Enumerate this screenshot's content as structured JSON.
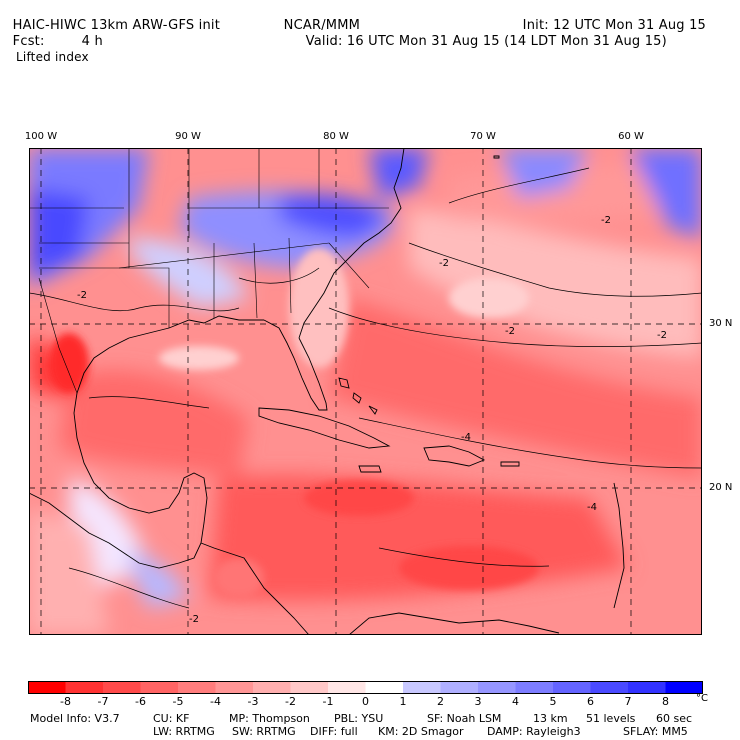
{
  "header": {
    "model_title": "HAIC-HIWC 13km ARW-GFS init",
    "org": "NCAR/MMM",
    "init": "Init: 12 UTC Mon 31 Aug 15",
    "fcst_label": "Fcst:",
    "fcst_value": "4 h",
    "valid": "Valid: 16 UTC Mon 31 Aug 15 (14 LDT Mon 31 Aug 15)",
    "field": "Lifted index"
  },
  "map": {
    "lon_labels": [
      "100 W",
      "90 W",
      "80 W",
      "70 W",
      "60 W"
    ],
    "lat_labels": [
      "30 N",
      "20 N"
    ],
    "contour_labels": [
      "-2",
      "-2",
      "-2",
      "-2",
      "-2",
      "-4",
      "-4",
      "-2"
    ]
  },
  "colorbar": {
    "ticks": [
      "-8",
      "-7",
      "-6",
      "-5",
      "-4",
      "-3",
      "-2",
      "-1",
      "0",
      "1",
      "2",
      "3",
      "4",
      "5",
      "6",
      "7",
      "8"
    ],
    "unit": "°C",
    "colors": [
      "#ff0000",
      "#ff3232",
      "#ff4a4a",
      "#ff6464",
      "#ff7d7d",
      "#ff9696",
      "#ffafaf",
      "#ffc8c8",
      "#ffe6e6",
      "#ffffff",
      "#c8c8ff",
      "#afafff",
      "#9696ff",
      "#7d7dff",
      "#6464ff",
      "#4a4aff",
      "#3232ff",
      "#0000ff"
    ]
  },
  "model_info": {
    "line1": [
      "Model Info: V3.7",
      "CU: KF",
      "MP: Thompson",
      "PBL: YSU",
      "SF: Noah LSM",
      "13 km",
      "51 levels",
      "60 sec"
    ],
    "line2": [
      "LW: RRTMG",
      "SW: RRTMG",
      "DIFF: full",
      "KM: 2D Smagor",
      "DAMP: Rayleigh3",
      "SFLAY: MM5"
    ]
  }
}
